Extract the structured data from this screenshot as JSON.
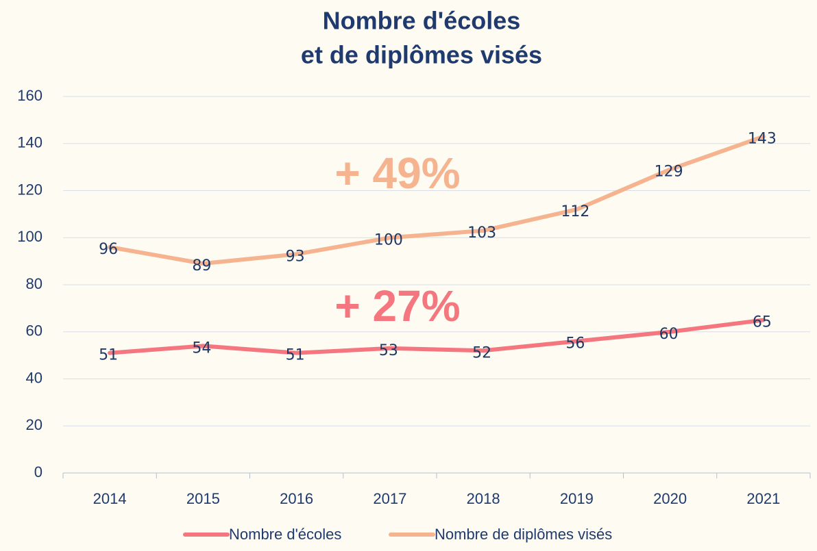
{
  "chart_data": {
    "type": "line",
    "title": [
      "Nombre d'écoles",
      "et de diplômes visés"
    ],
    "categories": [
      "2014",
      "2015",
      "2016",
      "2017",
      "2018",
      "2019",
      "2020",
      "2021"
    ],
    "series": [
      {
        "name": "Nombre d'écoles",
        "color": "#f4777f",
        "values": [
          51,
          54,
          51,
          53,
          52,
          56,
          60,
          65
        ]
      },
      {
        "name": "Nombre de diplômes visés",
        "color": "#f5b48f",
        "values": [
          96,
          89,
          93,
          100,
          103,
          112,
          129,
          143
        ]
      }
    ],
    "annotations": [
      {
        "text": "+ 49%",
        "color": "#f5b48f"
      },
      {
        "text": "+ 27%",
        "color": "#f4777f"
      }
    ],
    "ylim": [
      0,
      160
    ],
    "yticks": [
      0,
      20,
      40,
      60,
      80,
      100,
      120,
      140,
      160
    ],
    "grid": true,
    "legend": "bottom"
  }
}
